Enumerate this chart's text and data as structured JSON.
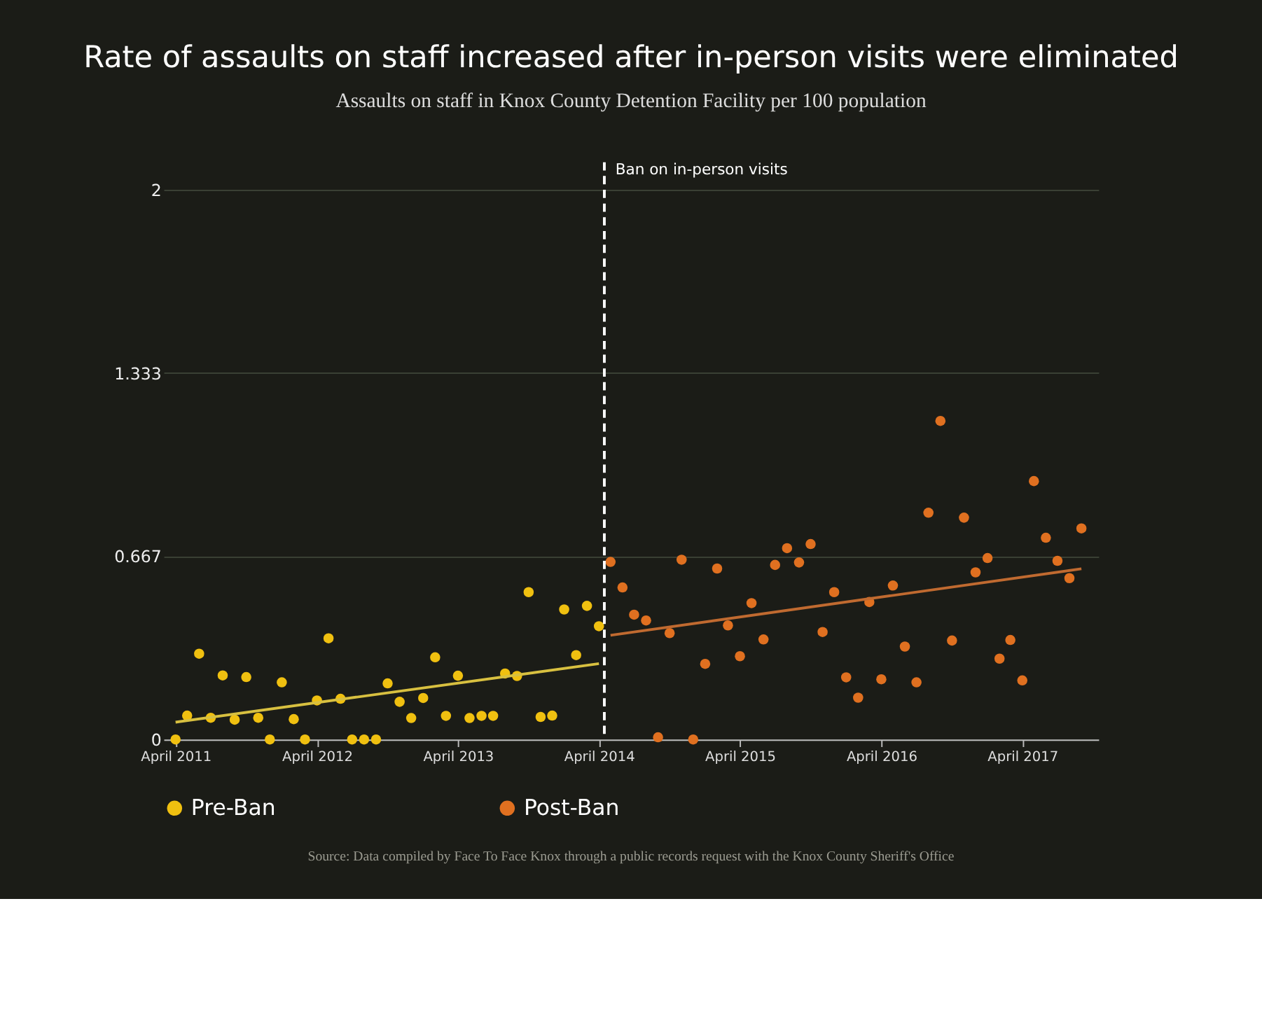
{
  "chart_data": {
    "type": "scatter",
    "title": "Rate of assaults on staff increased after in-person visits were eliminated",
    "subtitle": "Assaults on staff in Knox County Detention Facility per 100 population",
    "xlim": [
      "2011-03-01",
      "2017-10-15"
    ],
    "ylim": [
      0,
      2
    ],
    "xticks": [
      {
        "value": "2011-04",
        "label": "April 2011"
      },
      {
        "value": "2012-04",
        "label": "April 2012"
      },
      {
        "value": "2013-04",
        "label": "April 2013"
      },
      {
        "value": "2014-04",
        "label": "April 2014"
      },
      {
        "value": "2015-04",
        "label": "April 2015"
      },
      {
        "value": "2016-04",
        "label": "April 2016"
      },
      {
        "value": "2017-04",
        "label": "April 2017"
      }
    ],
    "yticks": [
      0,
      0.667,
      1.333,
      2
    ],
    "grid": "y",
    "legend": "bottom",
    "marker": "circle",
    "series": [
      {
        "name": "Pre-Ban",
        "color": "#f0c010",
        "x": [
          "2011-04",
          "2011-05",
          "2011-06",
          "2011-07",
          "2011-08",
          "2011-09",
          "2011-10",
          "2011-11",
          "2011-12",
          "2012-01",
          "2012-02",
          "2012-03",
          "2012-04",
          "2012-05",
          "2012-06",
          "2012-07",
          "2012-08",
          "2012-09",
          "2012-10",
          "2012-11",
          "2012-12",
          "2013-01",
          "2013-02",
          "2013-03",
          "2013-04",
          "2013-05",
          "2013-06",
          "2013-07",
          "2013-08",
          "2013-09",
          "2013-10",
          "2013-11",
          "2013-12",
          "2014-01",
          "2014-02",
          "2014-03",
          "2014-04"
        ],
        "values": [
          0,
          0.087,
          0.312,
          0.079,
          0.233,
          0.072,
          0.227,
          0.079,
          0,
          0.208,
          0.074,
          0,
          0.142,
          0.368,
          0.148,
          0,
          0,
          0,
          0.204,
          0.137,
          0.078,
          0.151,
          0.299,
          0.086,
          0.232,
          0.078,
          0.086,
          0.086,
          0.24,
          0.231,
          0.536,
          0.082,
          0.087,
          0.473,
          0.307,
          0.486,
          0.412
        ]
      },
      {
        "name": "Post-Ban",
        "color": "#e07020",
        "x": [
          "2014-05",
          "2014-06",
          "2014-07",
          "2014-08",
          "2014-09",
          "2014-10",
          "2014-11",
          "2014-12",
          "2015-01",
          "2015-02",
          "2015-03",
          "2015-04",
          "2015-05",
          "2015-06",
          "2015-07",
          "2015-08",
          "2015-09",
          "2015-10",
          "2015-11",
          "2015-12",
          "2016-01",
          "2016-02",
          "2016-03",
          "2016-04",
          "2016-05",
          "2016-06",
          "2016-07",
          "2016-08",
          "2016-09",
          "2016-10",
          "2016-11",
          "2016-12",
          "2017-01",
          "2017-02",
          "2017-03",
          "2017-04",
          "2017-05",
          "2017-06",
          "2017-07",
          "2017-08",
          "2017-09"
        ],
        "values": [
          0.646,
          0.553,
          0.454,
          0.433,
          0.008,
          0.387,
          0.654,
          0,
          0.275,
          0.622,
          0.415,
          0.303,
          0.496,
          0.364,
          0.635,
          0.696,
          0.644,
          0.711,
          0.391,
          0.536,
          0.226,
          0.152,
          0.5,
          0.219,
          0.56,
          0.338,
          0.208,
          0.825,
          1.159,
          0.36,
          0.807,
          0.608,
          0.66,
          0.294,
          0.362,
          0.215,
          0.94,
          0.734,
          0.65,
          0.587,
          0.768
        ]
      },
      {
        "type": "line",
        "marker": "none",
        "color": "#d8c040",
        "x": [
          "2011-04",
          "2014-04"
        ],
        "values": [
          0.063,
          0.276
        ]
      },
      {
        "type": "line",
        "marker": "none",
        "color": "#c06a30",
        "x": [
          "2014-05",
          "2017-09"
        ],
        "values": [
          0.379,
          0.621
        ]
      }
    ],
    "ref_lines": [
      {
        "axis": "x",
        "value": "2014-04-15",
        "label": "Ban on in-person visits",
        "color": "#ffffff",
        "line_style": "dashed"
      }
    ],
    "annotations": [
      "Source: Data compiled by Face To Face Knox through a public records request with the Knox County Sheriff's Office"
    ]
  }
}
